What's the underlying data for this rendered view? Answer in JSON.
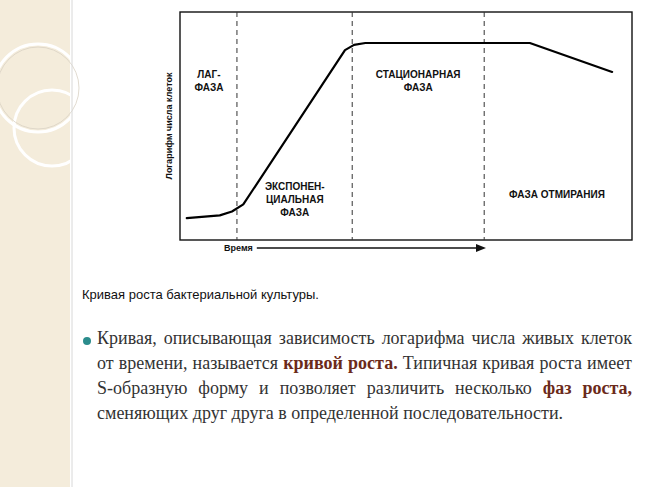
{
  "chart_data": {
    "type": "line",
    "title": "Кривая роста бактериальной культуры.",
    "x_label": "Время",
    "y_label": "Логарифм числа клеток",
    "x": [
      1.5,
      8.8,
      11.5,
      14,
      36.5,
      38.5,
      41,
      77.4,
      95.6
    ],
    "values": [
      9.6,
      10.8,
      12.5,
      15.6,
      83.3,
      85.6,
      86.4,
      86.4,
      73.7
    ],
    "color": "#000000",
    "xlim": [
      0,
      100
    ],
    "ylim": [
      0,
      100
    ],
    "xticks": [],
    "yticks": [],
    "tick_labels": false,
    "grid": false,
    "dividers": [
      12.6,
      38.1,
      67.3
    ],
    "annotations": [
      "ЛАГ-\nФАЗА",
      "ЭКСПОНЕН-\nЦИАЛЬНАЯ\nФАЗА",
      "СТАЦИОНАРНАЯ\nФАЗА",
      "ФАЗА ОТМИРАНИЯ"
    ]
  },
  "bullet": [
    {
      "text": "Кривая, описывающая зависимость логарифма числа живых клеток от времени, называется ",
      "bold": false
    },
    {
      "text": "кривой роста.",
      "bold": true
    },
    {
      "text": " Типичная кривая роста имеет S-образную форму и позволяет различить несколько ",
      "bold": false
    },
    {
      "text": "фаз роста,",
      "bold": true
    },
    {
      "text": " сменяющих друг друга в определенной последовательности.",
      "bold": false
    }
  ]
}
